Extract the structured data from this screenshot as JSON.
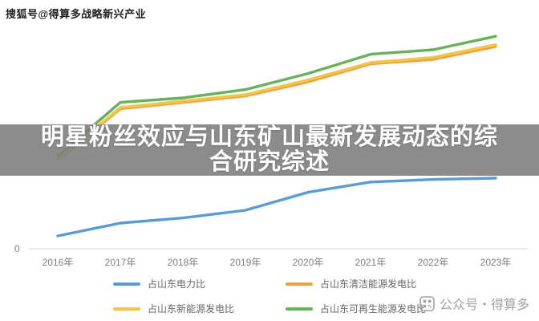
{
  "watermarks": {
    "top": "搜狐号@得算多战略新兴产业",
    "bottom": "公众号・得算多"
  },
  "overlay_title": {
    "line1": "明星粉丝效应与山东矿山最新发展动态的综",
    "line2": "合研究综述"
  },
  "chart_data": {
    "type": "line",
    "title": "",
    "xlabel": "",
    "ylabel": "",
    "categories": [
      "2016年",
      "2017年",
      "2018年",
      "2019年",
      "2020年",
      "2021年",
      "2022年",
      "2023年"
    ],
    "series": [
      {
        "name": "占山东电力比",
        "color": "#5b9bd5",
        "values": [
          2.0,
          4.0,
          4.8,
          6.0,
          8.8,
          10.4,
          10.8,
          11.0
        ]
      },
      {
        "name": "占山东清洁能源发电比",
        "color": "#ed9f43",
        "values": [
          13.8,
          21.8,
          22.8,
          23.8,
          26.0,
          28.8,
          29.5,
          31.5
        ]
      },
      {
        "name": "占山东新能源发电比",
        "color": "#f2c545",
        "values": [
          14.0,
          22.0,
          23.0,
          24.0,
          26.3,
          29.0,
          29.8,
          31.8
        ]
      },
      {
        "name": "占山东可再生能源发电比",
        "color": "#67b158",
        "values": [
          14.4,
          22.8,
          23.5,
          24.8,
          27.3,
          30.3,
          31.0,
          33.1
        ]
      }
    ],
    "ylim": [
      0,
      35
    ],
    "axis_zero_label": "0",
    "grid": false,
    "legend_position": "bottom",
    "axis_color": "#dcdcdc"
  }
}
